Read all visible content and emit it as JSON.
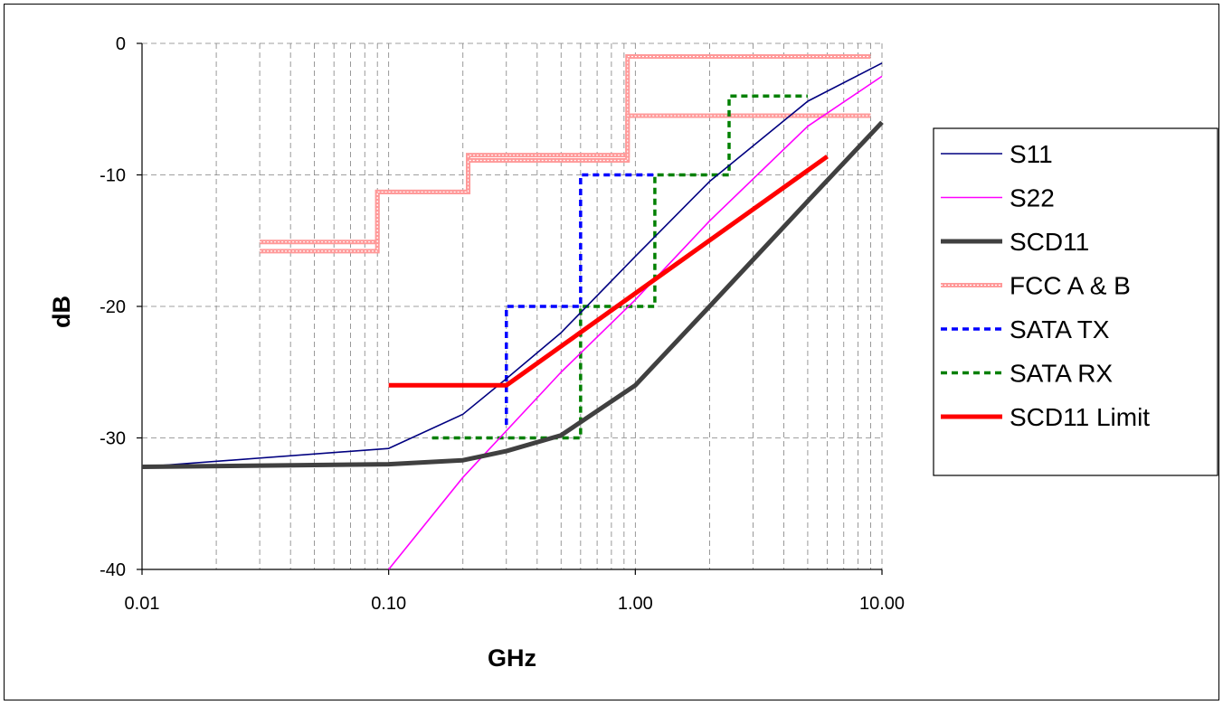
{
  "chart_data": {
    "type": "line",
    "title": "",
    "xlabel": "GHz",
    "ylabel": "dB",
    "x_scale": "log",
    "xlim": [
      0.01,
      10
    ],
    "ylim": [
      -40,
      0
    ],
    "x_ticks": [
      0.01,
      0.1,
      1,
      10
    ],
    "x_tick_labels": [
      "0.01",
      "0.10",
      "1.00",
      "10.00"
    ],
    "y_ticks": [
      0,
      -10,
      -20,
      -30,
      -40
    ],
    "y_tick_labels": [
      "0",
      "-10",
      "-20",
      "-30",
      "-40"
    ],
    "grid": true,
    "legend_position": "right",
    "series": [
      {
        "name": "S11",
        "color": "#000080",
        "style": "thin",
        "points": [
          [
            0.01,
            -32.2
          ],
          [
            0.1,
            -30.8
          ],
          [
            0.2,
            -28.2
          ],
          [
            0.3,
            -25.5
          ],
          [
            0.5,
            -22
          ],
          [
            1,
            -16.2
          ],
          [
            2,
            -10.5
          ],
          [
            5,
            -4.4
          ],
          [
            10,
            -1.5
          ]
        ]
      },
      {
        "name": "S22",
        "color": "#ff00ff",
        "style": "thin",
        "points": [
          [
            0.1,
            -40
          ],
          [
            0.2,
            -33
          ],
          [
            0.5,
            -25
          ],
          [
            1,
            -19.5
          ],
          [
            2,
            -13.5
          ],
          [
            5,
            -6.3
          ],
          [
            10,
            -2.5
          ]
        ]
      },
      {
        "name": "SCD11",
        "color": "#404040",
        "style": "thick",
        "points": [
          [
            0.01,
            -32.2
          ],
          [
            0.1,
            -32
          ],
          [
            0.2,
            -31.7
          ],
          [
            0.3,
            -31
          ],
          [
            0.5,
            -29.8
          ],
          [
            1,
            -26
          ],
          [
            2,
            -20
          ],
          [
            5,
            -12
          ],
          [
            10,
            -6
          ]
        ]
      },
      {
        "name": "FCC A & B",
        "color": "#ff9999",
        "style": "fcc",
        "segments": [
          [
            [
              0.03,
              -15.1
            ],
            [
              0.09,
              -15.1
            ],
            [
              0.09,
              -11.3
            ],
            [
              0.21,
              -11.3
            ],
            [
              0.21,
              -8.5
            ],
            [
              0.93,
              -8.5
            ],
            [
              0.93,
              -1
            ],
            [
              9,
              -1
            ]
          ],
          [
            [
              0.03,
              -15.8
            ],
            [
              0.09,
              -15.8
            ],
            [
              0.09,
              -11.3
            ],
            [
              0.21,
              -11.3
            ],
            [
              0.21,
              -8.9
            ],
            [
              0.93,
              -8.9
            ],
            [
              0.93,
              -5.5
            ],
            [
              9,
              -5.5
            ]
          ]
        ]
      },
      {
        "name": "SATA TX",
        "color": "#0000ff",
        "style": "dotted",
        "points": [
          [
            0.3,
            -29
          ],
          [
            0.3,
            -20
          ],
          [
            0.6,
            -20
          ],
          [
            0.6,
            -10
          ],
          [
            1.2,
            -10
          ]
        ]
      },
      {
        "name": "SATA RX",
        "color": "#008000",
        "style": "dotted",
        "points": [
          [
            0.15,
            -30
          ],
          [
            0.6,
            -30
          ],
          [
            0.6,
            -20
          ],
          [
            1.2,
            -20
          ],
          [
            1.2,
            -10
          ],
          [
            2.4,
            -10
          ],
          [
            2.4,
            -4
          ],
          [
            5,
            -4
          ]
        ]
      },
      {
        "name": "SCD11 Limit",
        "color": "#ff0000",
        "style": "thick",
        "points": [
          [
            0.1,
            -26
          ],
          [
            0.3,
            -26
          ],
          [
            6,
            -8.6
          ]
        ]
      }
    ]
  }
}
